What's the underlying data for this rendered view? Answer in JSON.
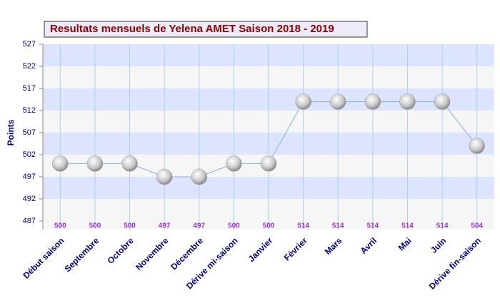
{
  "chart_data": {
    "type": "line",
    "title": "Resultats mensuels de Yelena AMET Saison 2018 - 2019",
    "y_label": "Points",
    "categories": [
      "Début saison",
      "Septembre",
      "Octobre",
      "Novembre",
      "Décembre",
      "Dérive mi-saison",
      "Janvier",
      "Février",
      "Mars",
      "Avril",
      "Mai",
      "Juin",
      "Dérive fin-saison"
    ],
    "values": [
      500,
      500,
      500,
      497,
      497,
      500,
      500,
      514,
      514,
      514,
      514,
      514,
      504
    ],
    "color": "#7fb2e5",
    "ylim": [
      487,
      527
    ],
    "yticks": [
      487,
      492,
      497,
      502,
      507,
      512,
      517,
      522,
      527
    ],
    "grid": true
  }
}
